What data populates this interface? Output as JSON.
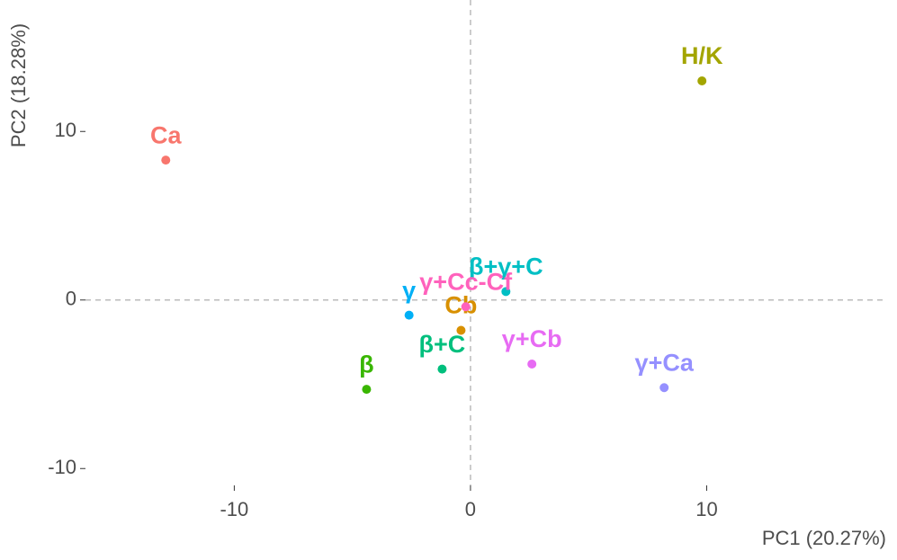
{
  "chart_data": {
    "type": "scatter",
    "x_label": "PC1 (20.27%)",
    "y_label": "PC2 (18.28%)",
    "xlim": [
      -16.3,
      17.6
    ],
    "ylim": [
      -11,
      17.8
    ],
    "xticks": [
      -10,
      0,
      10
    ],
    "yticks": [
      -10,
      0,
      10
    ],
    "grid": false,
    "hline": 0,
    "vline": 0,
    "series": [
      {
        "name": "Ca",
        "color": "#F8766D",
        "x": [
          -12.9
        ],
        "values": [
          8.3
        ]
      },
      {
        "name": "Cb",
        "color": "#D89000",
        "x": [
          -0.4
        ],
        "values": [
          -1.8
        ]
      },
      {
        "name": "H/K",
        "color": "#A3A500",
        "x": [
          9.8
        ],
        "values": [
          13.0
        ]
      },
      {
        "name": "β",
        "color": "#39B600",
        "x": [
          -4.4
        ],
        "values": [
          -5.3
        ]
      },
      {
        "name": "β+C",
        "color": "#00BF7D",
        "x": [
          -1.2
        ],
        "values": [
          -4.1
        ]
      },
      {
        "name": "β+γ+C",
        "color": "#00BFC4",
        "x": [
          1.5
        ],
        "values": [
          0.5
        ]
      },
      {
        "name": "γ",
        "color": "#00B0F6",
        "x": [
          -2.6
        ],
        "values": [
          -0.9
        ]
      },
      {
        "name": "γ+Ca",
        "color": "#9590FF",
        "x": [
          8.2
        ],
        "values": [
          -5.2
        ]
      },
      {
        "name": "γ+Cb",
        "color": "#E76BF3",
        "x": [
          2.6
        ],
        "values": [
          -3.8
        ]
      },
      {
        "name": "γ+Cc-Cf",
        "color": "#FF62BC",
        "x": [
          -0.2
        ],
        "values": [
          -0.4
        ]
      }
    ]
  }
}
